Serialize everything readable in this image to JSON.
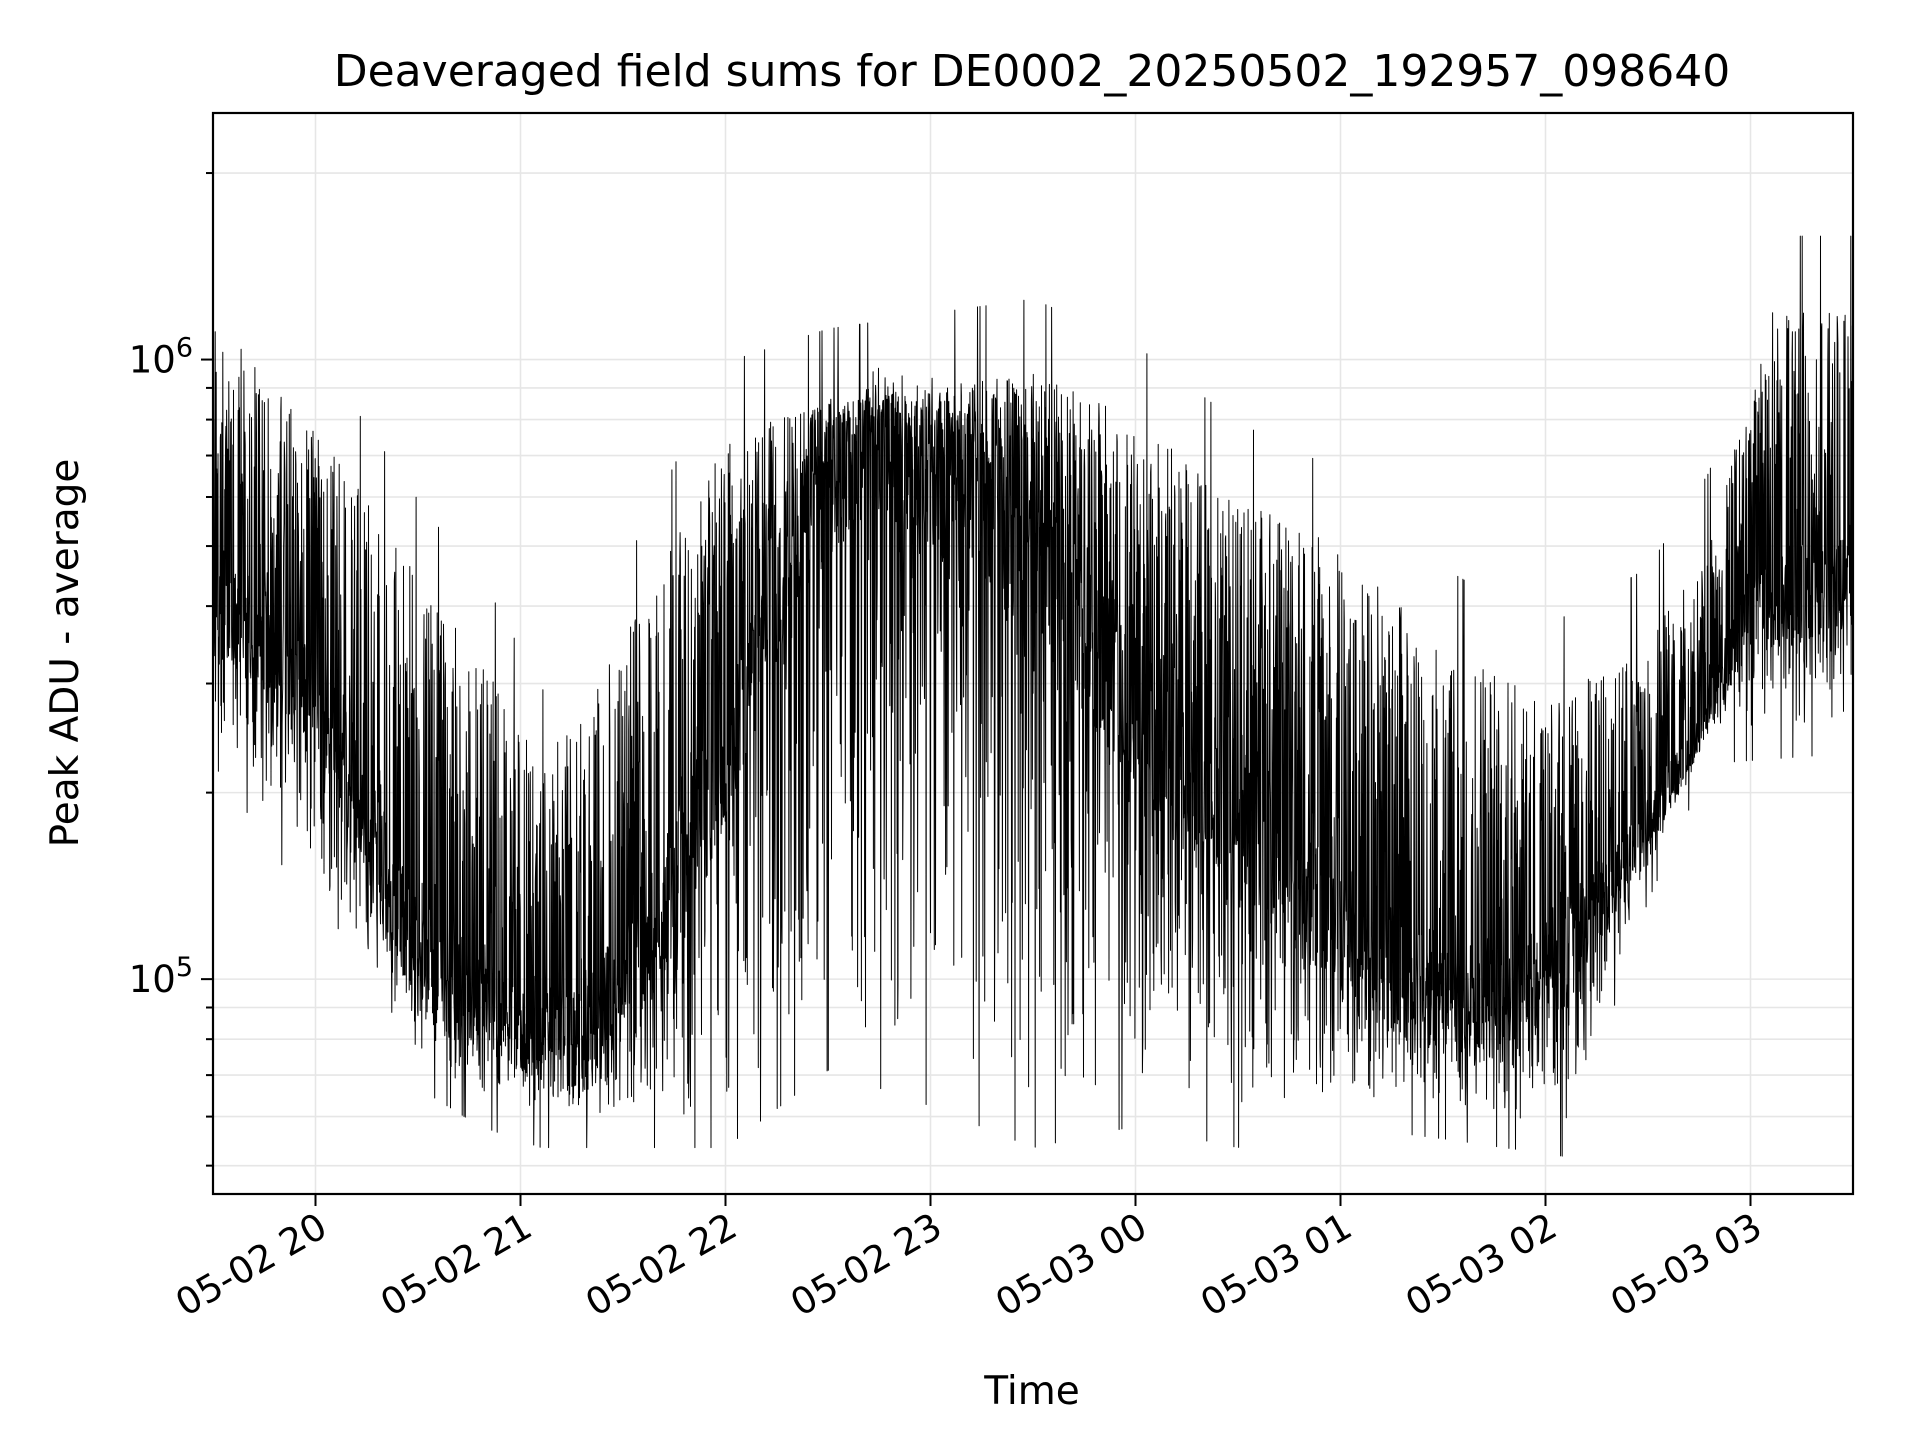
{
  "chart_data": {
    "type": "line",
    "title": "Deaveraged field sums for DE0002_20250502_192957_098640",
    "xlabel": "Time",
    "ylabel": "Peak ADU - average",
    "yscale": "log",
    "grid": true,
    "line_color": "#000000",
    "grid_color": "#e6e6e6",
    "xlim": [
      "2025-05-02 19:30",
      "2025-05-03 03:30"
    ],
    "ylim": [
      45000,
      2500000
    ],
    "x_ticks": [
      "05-02 20",
      "05-02 21",
      "05-02 22",
      "05-02 23",
      "05-03 00",
      "05-03 01",
      "05-03 02",
      "05-03 03"
    ],
    "y_ticks": [
      {
        "base": "10",
        "exp": "5",
        "value": 100000
      },
      {
        "base": "10",
        "exp": "6",
        "value": 1000000
      }
    ],
    "series": [
      {
        "x_start": "2025-05-02 19:30",
        "x_end": "2025-05-03 03:30",
        "upper_envelope": [
          [
            0.0,
            1200000
          ],
          [
            0.3,
            900000
          ],
          [
            0.6,
            700000
          ],
          [
            1.0,
            450000
          ],
          [
            1.4,
            300000
          ],
          [
            1.6,
            220000
          ],
          [
            2.0,
            350000
          ],
          [
            2.5,
            750000
          ],
          [
            3.0,
            850000
          ],
          [
            3.5,
            900000
          ],
          [
            4.0,
            950000
          ],
          [
            4.5,
            800000
          ],
          [
            5.0,
            600000
          ],
          [
            5.5,
            500000
          ],
          [
            6.0,
            350000
          ],
          [
            6.5,
            280000
          ],
          [
            7.0,
            350000
          ],
          [
            7.3,
            500000
          ],
          [
            7.6,
            1200000
          ],
          [
            8.0,
            1200000
          ]
        ],
        "base_level": [
          [
            0.0,
            400000
          ],
          [
            0.3,
            350000
          ],
          [
            0.6,
            250000
          ],
          [
            0.8,
            160000
          ],
          [
            1.0,
            110000
          ],
          [
            1.3,
            90000
          ],
          [
            1.6,
            80000
          ],
          [
            1.8,
            80000
          ],
          [
            2.0,
            100000
          ],
          [
            2.3,
            150000
          ],
          [
            2.7,
            400000
          ],
          [
            3.0,
            650000
          ],
          [
            3.3,
            750000
          ],
          [
            3.6,
            650000
          ],
          [
            4.0,
            500000
          ],
          [
            4.3,
            350000
          ],
          [
            4.6,
            250000
          ],
          [
            5.0,
            180000
          ],
          [
            5.4,
            130000
          ],
          [
            5.8,
            100000
          ],
          [
            6.2,
            90000
          ],
          [
            6.6,
            110000
          ],
          [
            6.9,
            160000
          ],
          [
            7.2,
            230000
          ],
          [
            7.5,
            400000
          ],
          [
            8.0,
            450000
          ]
        ],
        "lower_envelope": [
          [
            0.0,
            250000
          ],
          [
            0.3,
            180000
          ],
          [
            0.6,
            120000
          ],
          [
            1.0,
            75000
          ],
          [
            1.3,
            65000
          ],
          [
            1.6,
            60000
          ],
          [
            2.0,
            60000
          ],
          [
            2.5,
            60000
          ],
          [
            3.0,
            80000
          ],
          [
            3.5,
            70000
          ],
          [
            4.0,
            60000
          ],
          [
            4.5,
            65000
          ],
          [
            5.0,
            60000
          ],
          [
            5.5,
            65000
          ],
          [
            6.0,
            62000
          ],
          [
            6.6,
            58000
          ],
          [
            7.0,
            150000
          ],
          [
            7.3,
            250000
          ],
          [
            8.0,
            260000
          ]
        ]
      }
    ]
  }
}
